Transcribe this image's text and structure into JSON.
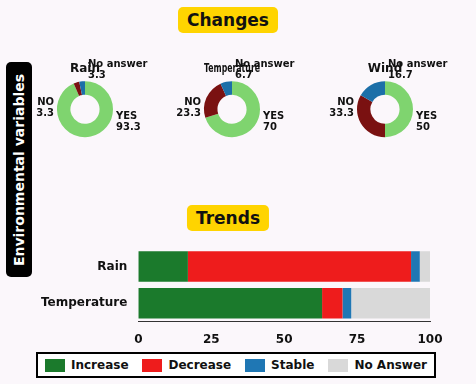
{
  "side_label": "Environmental variables",
  "headings": [
    "Changes",
    "Trends"
  ],
  "chart_data": [
    {
      "type": "doughnut",
      "title": "Rain",
      "categories": [
        "YES",
        "NO",
        "No answer"
      ],
      "values": [
        93.3,
        3.3,
        3.3
      ],
      "colors": [
        "#7fd46f",
        "#7a1111",
        "#1c6fa8"
      ],
      "data_labels": true
    },
    {
      "type": "doughnut",
      "title": "Temperature",
      "categories": [
        "YES",
        "NO",
        "No answer"
      ],
      "values": [
        70,
        23.3,
        6.7
      ],
      "colors": [
        "#7fd46f",
        "#7a1111",
        "#1c6fa8"
      ],
      "data_labels": true
    },
    {
      "type": "doughnut",
      "title": "Wind",
      "categories": [
        "YES",
        "NO",
        "No answer"
      ],
      "values": [
        50,
        33.3,
        16.7
      ],
      "colors": [
        "#7fd46f",
        "#7a1111",
        "#1c6fa8"
      ],
      "data_labels": true
    },
    {
      "type": "bar",
      "orientation": "horizontal",
      "stacked": true,
      "categories": [
        "Rain",
        "Temperature"
      ],
      "series": [
        {
          "name": "Increase",
          "color": "#1b7a2c",
          "values": [
            17,
            63
          ]
        },
        {
          "name": "Decrease",
          "color": "#ee1c1c",
          "values": [
            76.5,
            7
          ]
        },
        {
          "name": "Stable",
          "color": "#1f77b4",
          "values": [
            3,
            3
          ]
        },
        {
          "name": "No Answer",
          "color": "#d9d9d9",
          "values": [
            3.5,
            27
          ]
        }
      ],
      "xlim": [
        0,
        100
      ],
      "xticks": [
        0,
        25,
        50,
        75,
        100
      ],
      "grid": false,
      "legend": "bottom"
    }
  ]
}
